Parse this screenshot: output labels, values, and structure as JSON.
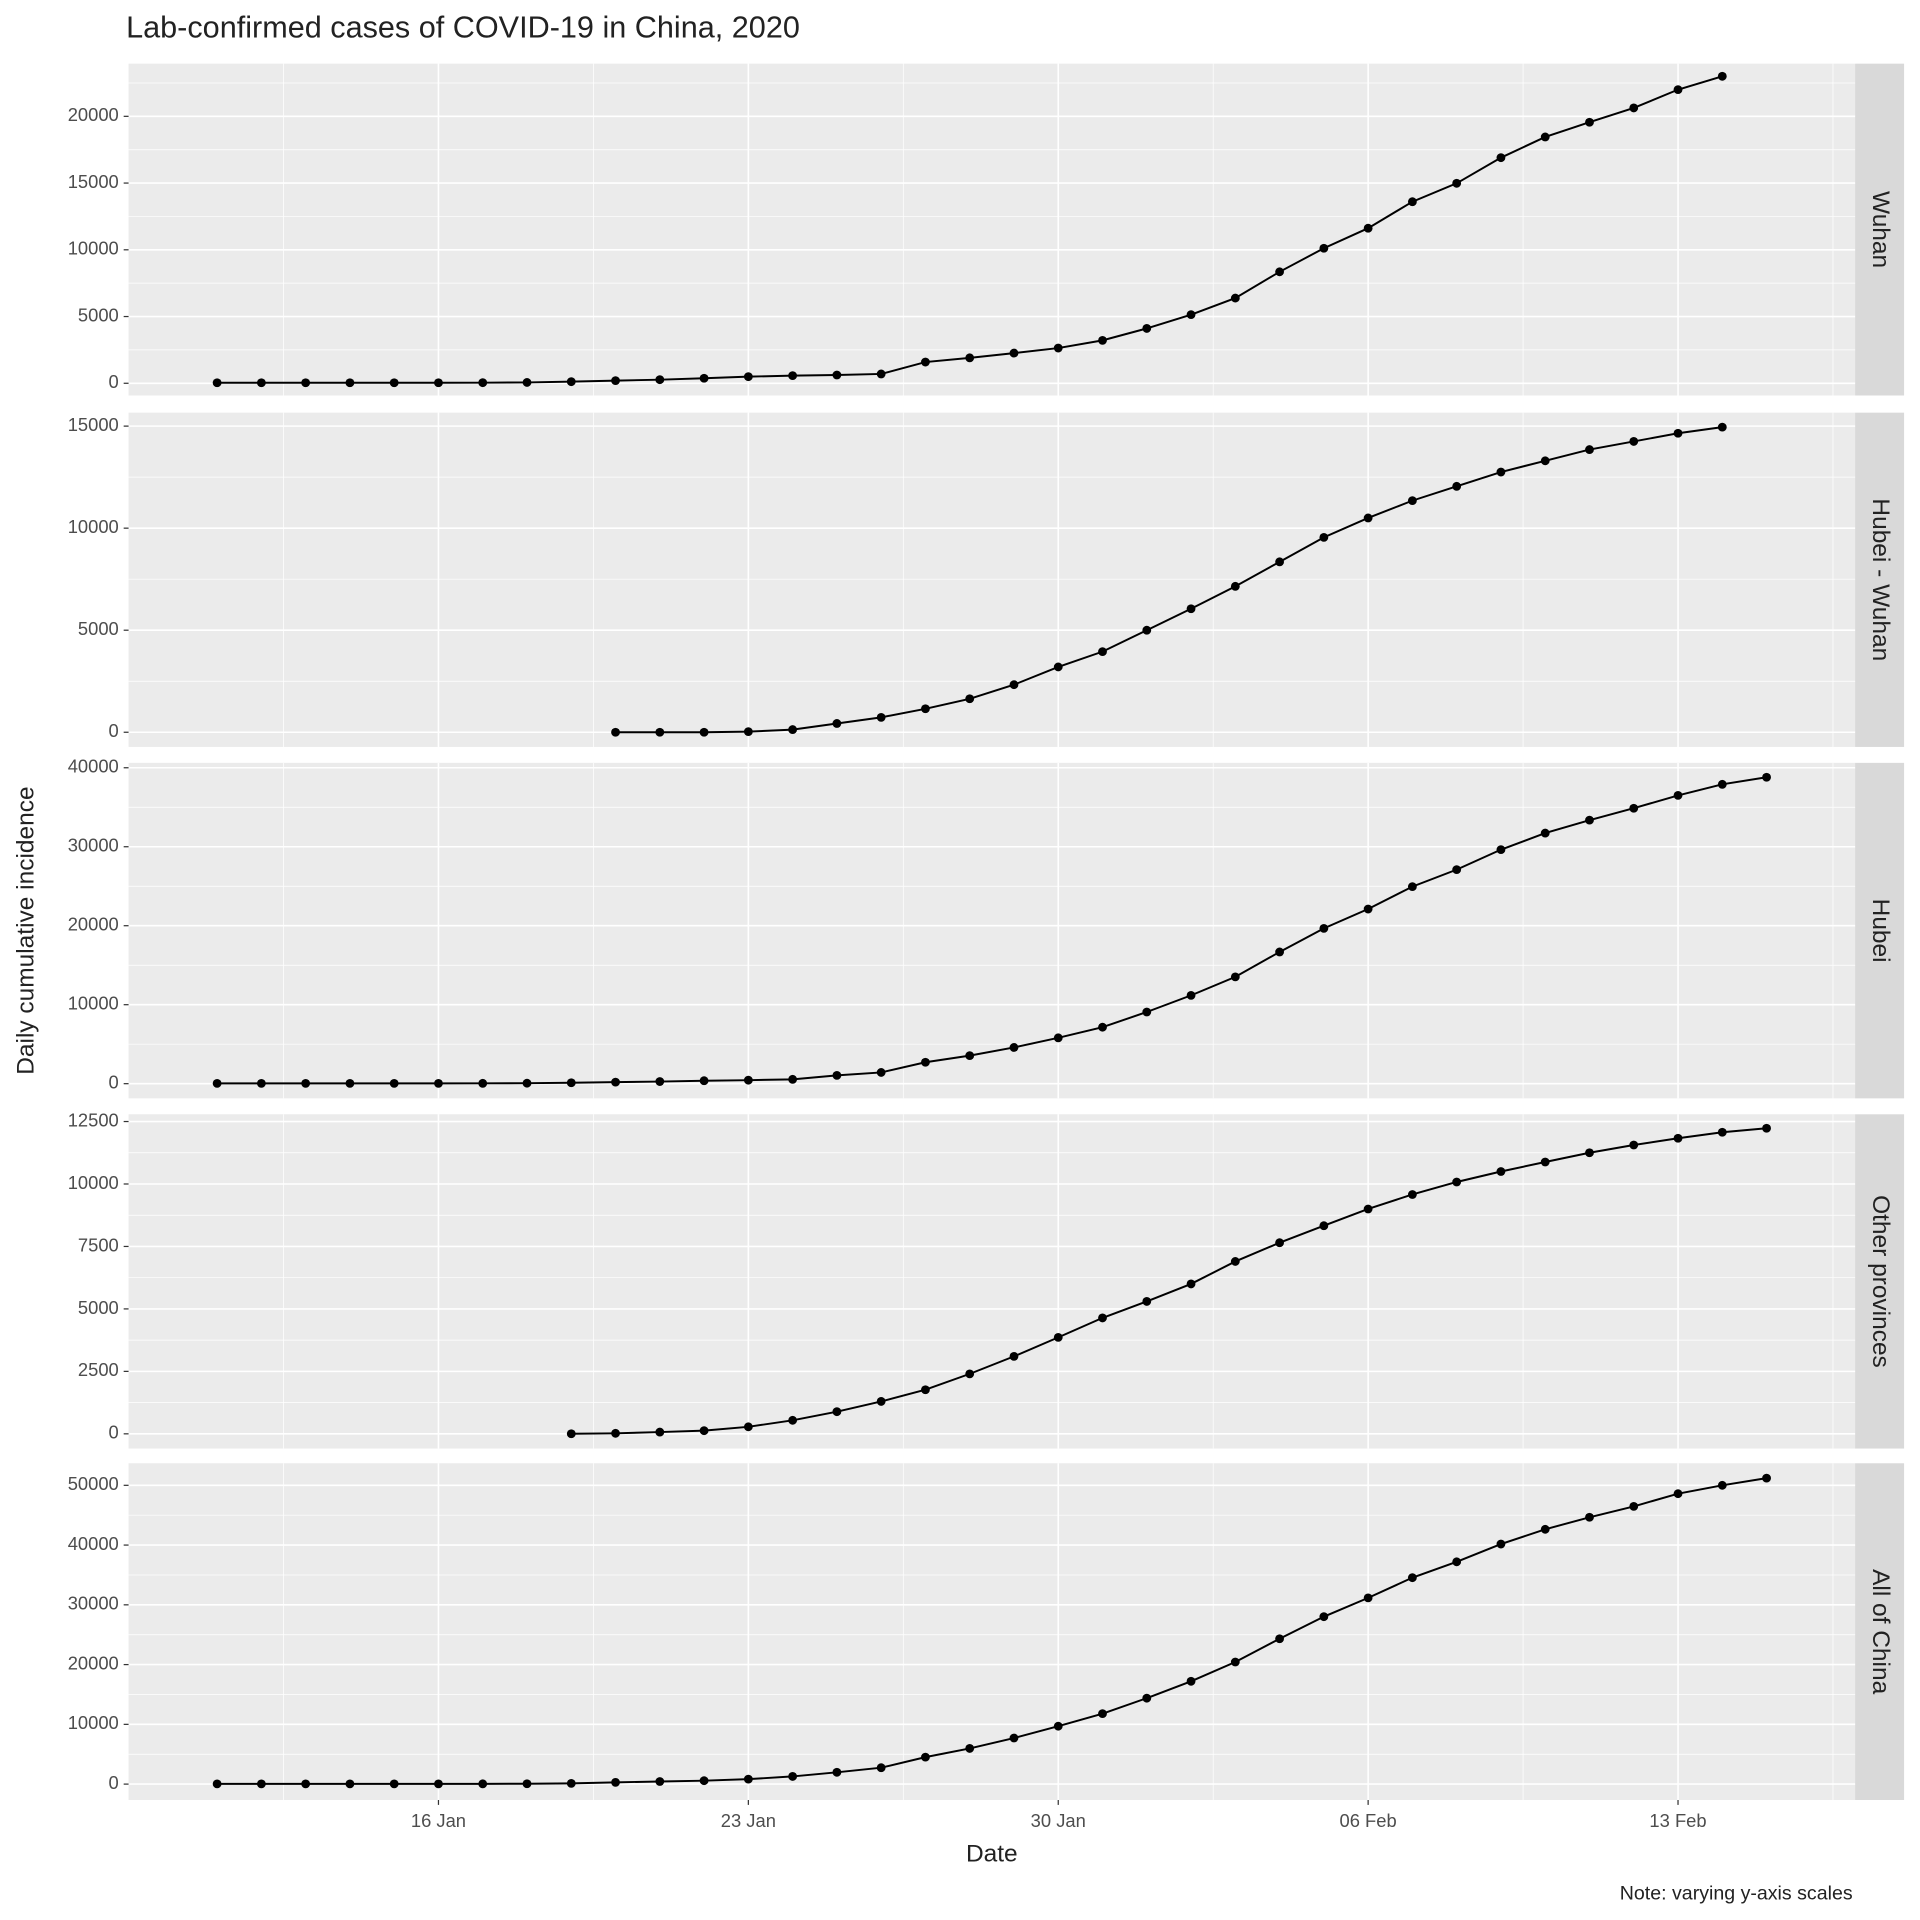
{
  "title": "Lab-confirmed cases of COVID-19 in China, 2020",
  "x_label": "Date",
  "y_label": "Daily cumulative incidence",
  "note": "Note: varying y-axis scales",
  "xlim": [
    "09 Jan",
    "17 Feb"
  ],
  "xticks": [
    "16 Jan",
    "23 Jan",
    "30 Jan",
    "06 Feb",
    "13 Feb"
  ],
  "chart_data": [
    {
      "type": "line",
      "title": "Wuhan",
      "color": "#000000",
      "x": [
        "11 Jan",
        "12 Jan",
        "13 Jan",
        "14 Jan",
        "15 Jan",
        "16 Jan",
        "17 Jan",
        "18 Jan",
        "19 Jan",
        "20 Jan",
        "21 Jan",
        "22 Jan",
        "23 Jan",
        "24 Jan",
        "25 Jan",
        "26 Jan",
        "27 Jan",
        "28 Jan",
        "29 Jan",
        "30 Jan",
        "31 Jan",
        "01 Feb",
        "02 Feb",
        "03 Feb",
        "04 Feb",
        "05 Feb",
        "06 Feb",
        "07 Feb",
        "08 Feb",
        "09 Feb",
        "10 Feb",
        "11 Feb",
        "12 Feb",
        "13 Feb",
        "14 Feb"
      ],
      "values": [
        41,
        41,
        41,
        41,
        41,
        41,
        45,
        62,
        121,
        198,
        270,
        375,
        495,
        572,
        618,
        698,
        1590,
        1905,
        2261,
        2639,
        3215,
        4109,
        5142,
        6384,
        8351,
        10117,
        11618,
        13603,
        14982,
        16902,
        18454,
        19558,
        20630,
        22000,
        23000
      ],
      "ylim": [
        -917,
        23945
      ],
      "yticks": [
        0,
        5000,
        10000,
        15000,
        20000
      ]
    },
    {
      "type": "line",
      "title": "Hubei - Wuhan",
      "color": "#000000",
      "x": [
        "20 Jan",
        "21 Jan",
        "22 Jan",
        "23 Jan",
        "24 Jan",
        "25 Jan",
        "26 Jan",
        "27 Jan",
        "28 Jan",
        "29 Jan",
        "30 Jan",
        "31 Jan",
        "01 Feb",
        "02 Feb",
        "03 Feb",
        "04 Feb",
        "05 Feb",
        "06 Feb",
        "07 Feb",
        "08 Feb",
        "09 Feb",
        "10 Feb",
        "11 Feb",
        "12 Feb",
        "13 Feb",
        "14 Feb"
      ],
      "values": [
        0,
        0,
        0,
        30,
        130,
        430,
        730,
        1150,
        1640,
        2330,
        3200,
        3950,
        5000,
        6050,
        7150,
        8350,
        9550,
        10500,
        11350,
        12050,
        12750,
        13300,
        13850,
        14250,
        14650,
        14950
      ],
      "ylim": [
        -720,
        15660
      ],
      "yticks": [
        0,
        5000,
        10000,
        15000
      ]
    },
    {
      "type": "line",
      "title": "Hubei",
      "color": "#000000",
      "x": [
        "11 Jan",
        "12 Jan",
        "13 Jan",
        "14 Jan",
        "15 Jan",
        "16 Jan",
        "17 Jan",
        "18 Jan",
        "19 Jan",
        "20 Jan",
        "21 Jan",
        "22 Jan",
        "23 Jan",
        "24 Jan",
        "25 Jan",
        "26 Jan",
        "27 Jan",
        "28 Jan",
        "29 Jan",
        "30 Jan",
        "31 Jan",
        "01 Feb",
        "02 Feb",
        "03 Feb",
        "04 Feb",
        "05 Feb",
        "06 Feb",
        "07 Feb",
        "08 Feb",
        "09 Feb",
        "10 Feb",
        "11 Feb",
        "12 Feb",
        "13 Feb",
        "14 Feb",
        "15 Feb"
      ],
      "values": [
        41,
        41,
        41,
        41,
        41,
        41,
        45,
        62,
        121,
        198,
        270,
        375,
        444,
        549,
        1052,
        1423,
        2714,
        3554,
        4586,
        5806,
        7153,
        9074,
        11177,
        13522,
        16678,
        19665,
        22112,
        24953,
        27100,
        29631,
        31728,
        33366,
        34874,
        36500,
        37900,
        38800
      ],
      "ylim": [
        -1860,
        40620
      ],
      "yticks": [
        0,
        10000,
        20000,
        30000,
        40000
      ]
    },
    {
      "type": "line",
      "title": "Other provinces",
      "color": "#000000",
      "x": [
        "19 Jan",
        "20 Jan",
        "21 Jan",
        "22 Jan",
        "23 Jan",
        "24 Jan",
        "25 Jan",
        "26 Jan",
        "27 Jan",
        "28 Jan",
        "29 Jan",
        "30 Jan",
        "31 Jan",
        "01 Feb",
        "02 Feb",
        "03 Feb",
        "04 Feb",
        "05 Feb",
        "06 Feb",
        "07 Feb",
        "08 Feb",
        "09 Feb",
        "10 Feb",
        "11 Feb",
        "12 Feb",
        "13 Feb",
        "14 Feb",
        "15 Feb"
      ],
      "values": [
        4,
        21,
        70,
        127,
        281,
        541,
        887,
        1297,
        1765,
        2400,
        3100,
        3860,
        4640,
        5300,
        6000,
        6900,
        7650,
        8330,
        9000,
        9580,
        10080,
        10500,
        10880,
        11250,
        11560,
        11830,
        12070,
        12230
      ],
      "ylim": [
        -590,
        12790
      ],
      "yticks": [
        0,
        2500,
        5000,
        7500,
        10000,
        12500
      ]
    },
    {
      "type": "line",
      "title": "All of China",
      "color": "#000000",
      "x": [
        "11 Jan",
        "12 Jan",
        "13 Jan",
        "14 Jan",
        "15 Jan",
        "16 Jan",
        "17 Jan",
        "18 Jan",
        "19 Jan",
        "20 Jan",
        "21 Jan",
        "22 Jan",
        "23 Jan",
        "24 Jan",
        "25 Jan",
        "26 Jan",
        "27 Jan",
        "28 Jan",
        "29 Jan",
        "30 Jan",
        "31 Jan",
        "01 Feb",
        "02 Feb",
        "03 Feb",
        "04 Feb",
        "05 Feb",
        "06 Feb",
        "07 Feb",
        "08 Feb",
        "09 Feb",
        "10 Feb",
        "11 Feb",
        "12 Feb",
        "13 Feb",
        "14 Feb",
        "15 Feb"
      ],
      "values": [
        41,
        41,
        41,
        41,
        41,
        41,
        45,
        62,
        121,
        291,
        440,
        571,
        830,
        1287,
        1975,
        2744,
        4515,
        5974,
        7711,
        9692,
        11791,
        14380,
        17205,
        20438,
        24324,
        28018,
        31161,
        34546,
        37198,
        40171,
        42638,
        44653,
        46472,
        48600,
        50000,
        51200
      ],
      "ylim": [
        -2660,
        53690
      ],
      "yticks": [
        0,
        10000,
        20000,
        30000,
        40000,
        50000
      ]
    }
  ]
}
